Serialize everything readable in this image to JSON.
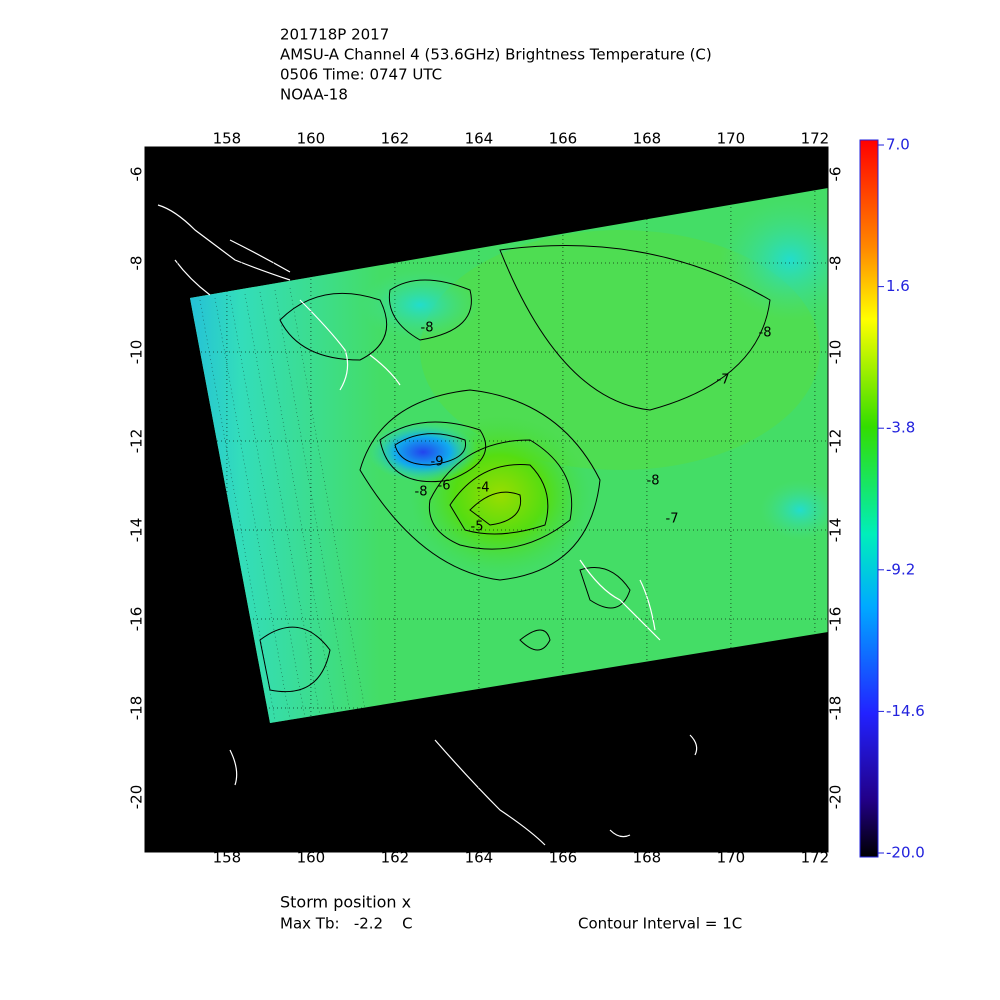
{
  "header": {
    "lines": [
      "201718P 2017",
      "AMSU-A Channel 4 (53.6GHz) Brightness Temperature (C)",
      "0506 Time: 0747 UTC",
      "NOAA-18"
    ]
  },
  "map": {
    "lon_ticks": [
      158,
      160,
      162,
      164,
      166,
      168,
      170,
      172
    ],
    "lat_ticks": [
      -6,
      -8,
      -10,
      -12,
      -14,
      -16,
      -18,
      -20
    ],
    "contour_labels": [
      "-8",
      "-9",
      "-6",
      "-8",
      "-4",
      "-5",
      "-8",
      "-7",
      "-8",
      "-7"
    ]
  },
  "colorbar": {
    "labels": [
      "7.0",
      "1.6",
      "-3.8",
      "-9.2",
      "-14.6",
      "-20.0"
    ]
  },
  "footer": {
    "storm": "Storm position x",
    "max_tb": "Max Tb:   -2.2    C",
    "interval": "Contour Interval = 1C"
  }
}
